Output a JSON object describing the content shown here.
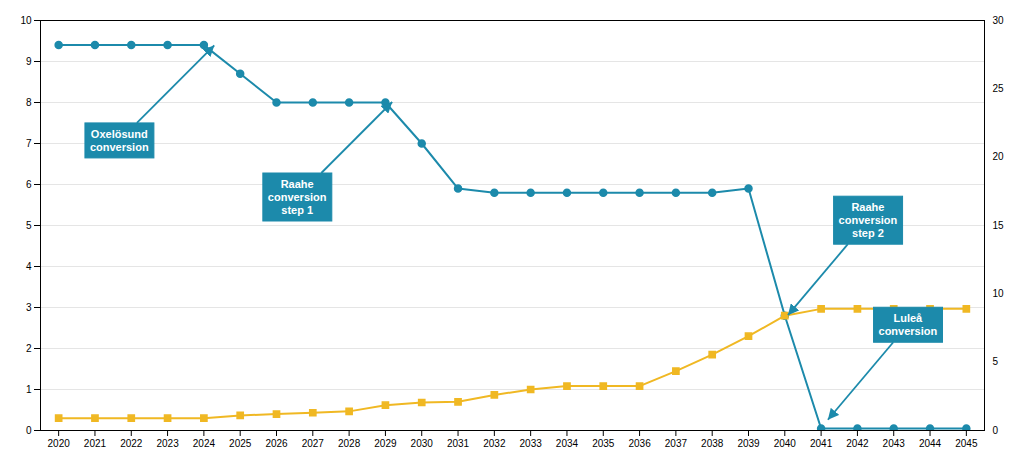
{
  "chart_data": {
    "type": "line",
    "x": [
      2020,
      2021,
      2022,
      2023,
      2024,
      2025,
      2026,
      2027,
      2028,
      2029,
      2030,
      2031,
      2032,
      2033,
      2034,
      2035,
      2036,
      2037,
      2038,
      2039,
      2040,
      2041,
      2042,
      2043,
      2044,
      2045
    ],
    "xlim": [
      2019.5,
      2045.5
    ],
    "xticks": [
      2020,
      2021,
      2022,
      2023,
      2024,
      2025,
      2026,
      2027,
      2028,
      2029,
      2030,
      2031,
      2032,
      2033,
      2034,
      2035,
      2036,
      2037,
      2038,
      2039,
      2040,
      2041,
      2042,
      2043,
      2044,
      2045
    ],
    "ylim": [
      0,
      10
    ],
    "yticks": [
      0,
      1,
      2,
      3,
      4,
      5,
      6,
      7,
      8,
      9,
      10
    ],
    "y2lim": [
      0,
      30
    ],
    "y2ticks": [
      0,
      5,
      10,
      15,
      20,
      25,
      30
    ],
    "grid": true,
    "series": [
      {
        "color": "#1c8aab",
        "marker": "circle",
        "values": [
          9.4,
          9.4,
          9.4,
          9.4,
          9.4,
          8.7,
          8.0,
          8.0,
          8.0,
          8.0,
          7.0,
          5.9,
          5.8,
          5.8,
          5.8,
          5.8,
          5.8,
          5.8,
          5.8,
          5.9,
          2.8,
          0.05,
          0.05,
          0.05,
          0.05,
          0.05
        ]
      },
      {
        "color": "#f0b823",
        "marker": "square",
        "axis": "y2",
        "values": [
          0.9,
          0.9,
          0.9,
          0.9,
          0.9,
          1.1,
          1.2,
          1.3,
          1.4,
          1.85,
          2.05,
          2.1,
          2.6,
          3.0,
          3.25,
          3.25,
          3.25,
          4.35,
          5.55,
          6.9,
          8.4,
          8.9,
          8.9,
          8.9,
          8.9,
          8.9
        ]
      }
    ],
    "annotations": [
      {
        "text": "Oxelösund\nconversion",
        "x": 2024.3,
        "y": 9.38,
        "color": "#1c8aab"
      },
      {
        "text": "Raahe\nconversion\nstep 1",
        "x": 2029.2,
        "y": 8.0,
        "color": "#1c8aab"
      },
      {
        "text": "Raahe\nconversion\nstep 2",
        "x": 2040.1,
        "y": 2.8,
        "color": "#1c8aab"
      },
      {
        "text": "Luleå\nconversion",
        "x": 2041.2,
        "y": 0.25,
        "color": "#1c8aab"
      }
    ]
  }
}
